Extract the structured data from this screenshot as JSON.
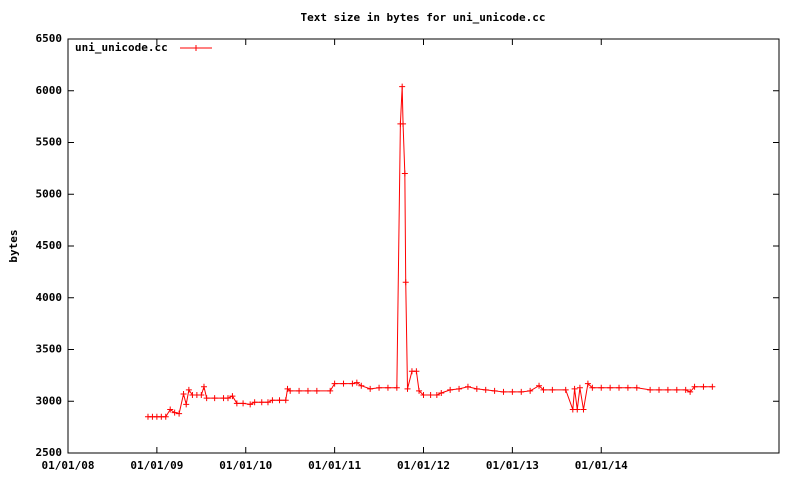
{
  "chart_data": {
    "type": "line",
    "title": "Text size in bytes for uni_unicode.cc",
    "y_label": "bytes",
    "x": [
      2008.9,
      2008.95,
      2009.0,
      2009.05,
      2009.1,
      2009.15,
      2009.2,
      2009.25,
      2009.3,
      2009.33,
      2009.36,
      2009.4,
      2009.45,
      2009.5,
      2009.53,
      2009.56,
      2009.65,
      2009.75,
      2009.8,
      2009.85,
      2009.9,
      2009.97,
      2010.05,
      2010.1,
      2010.18,
      2010.25,
      2010.3,
      2010.38,
      2010.45,
      2010.47,
      2010.5,
      2010.6,
      2010.7,
      2010.8,
      2010.95,
      2011.0,
      2011.1,
      2011.2,
      2011.25,
      2011.3,
      2011.4,
      2011.5,
      2011.6,
      2011.7,
      2011.74,
      2011.76,
      2011.77,
      2011.79,
      2011.8,
      2011.82,
      2011.87,
      2011.92,
      2011.95,
      2012.0,
      2012.08,
      2012.15,
      2012.2,
      2012.3,
      2012.4,
      2012.5,
      2012.6,
      2012.7,
      2012.8,
      2012.9,
      2013.0,
      2013.1,
      2013.2,
      2013.3,
      2013.35,
      2013.45,
      2013.6,
      2013.68,
      2013.7,
      2013.73,
      2013.76,
      2013.8,
      2013.85,
      2013.9,
      2014.0,
      2014.1,
      2014.2,
      2014.3,
      2014.4,
      2014.55,
      2014.65,
      2014.75,
      2014.85,
      2014.95,
      2015.0,
      2015.05,
      2015.15,
      2015.25
    ],
    "series": [
      {
        "name": "uni_unicode.cc",
        "color": "#ff0000",
        "values": [
          2850,
          2850,
          2850,
          2850,
          2850,
          2920,
          2890,
          2880,
          3070,
          2970,
          3110,
          3060,
          3060,
          3060,
          3140,
          3030,
          3030,
          3030,
          3030,
          3050,
          2980,
          2980,
          2970,
          2990,
          2990,
          2990,
          3010,
          3010,
          3010,
          3120,
          3100,
          3100,
          3100,
          3100,
          3100,
          3170,
          3170,
          3170,
          3180,
          3150,
          3120,
          3130,
          3130,
          3130,
          5680,
          6040,
          5680,
          5200,
          4150,
          3120,
          3290,
          3290,
          3100,
          3060,
          3060,
          3060,
          3080,
          3110,
          3120,
          3140,
          3120,
          3110,
          3100,
          3090,
          3090,
          3090,
          3100,
          3150,
          3110,
          3110,
          3110,
          2920,
          3120,
          2920,
          3130,
          2920,
          3170,
          3130,
          3130,
          3130,
          3130,
          3130,
          3130,
          3110,
          3110,
          3110,
          3110,
          3110,
          3090,
          3140,
          3140,
          3140
        ]
      }
    ],
    "xlim": [
      2008,
      2016
    ],
    "xticks": [
      {
        "value": 2008,
        "label": "01/01/08"
      },
      {
        "value": 2009,
        "label": "01/01/09"
      },
      {
        "value": 2010,
        "label": "01/01/10"
      },
      {
        "value": 2011,
        "label": "01/01/11"
      },
      {
        "value": 2012,
        "label": "01/01/12"
      },
      {
        "value": 2013,
        "label": "01/01/13"
      },
      {
        "value": 2014,
        "label": "01/01/14"
      }
    ],
    "ylim": [
      2500,
      6500
    ],
    "yticks": [
      2500,
      3000,
      3500,
      4000,
      4500,
      5000,
      5500,
      6000,
      6500
    ]
  }
}
